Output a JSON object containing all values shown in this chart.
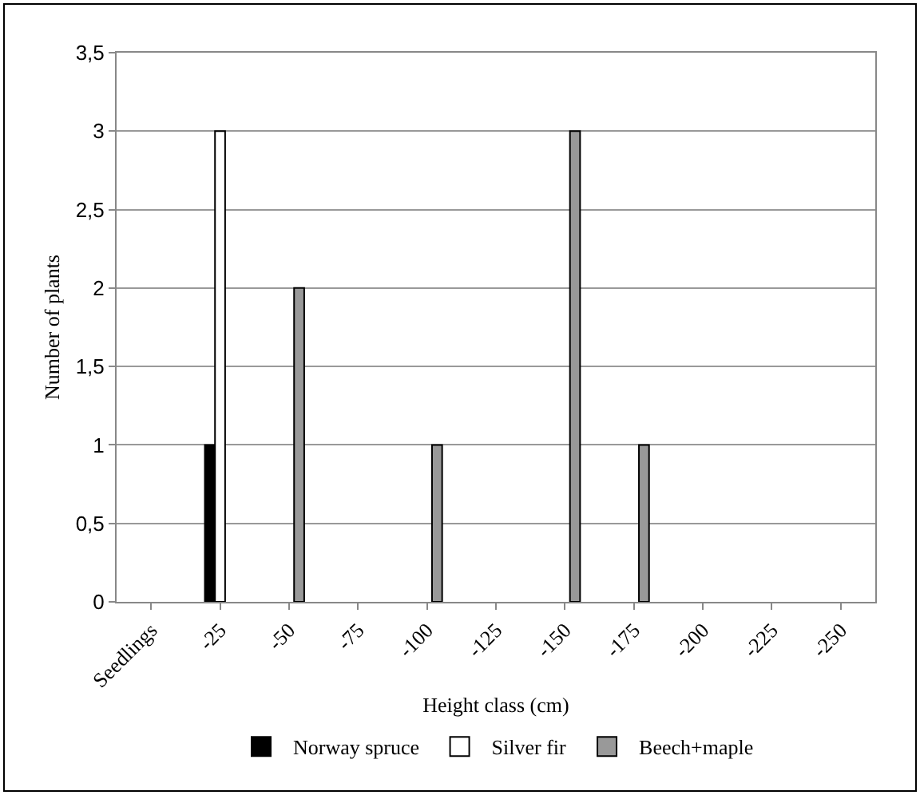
{
  "chart_data": {
    "type": "bar",
    "xlabel": "Height class (cm)",
    "ylabel": "Number of plants",
    "categories": [
      "Seedlings",
      "-25",
      "-50",
      "-75",
      "-100",
      "-125",
      "-150",
      "-175",
      "-200",
      "-225",
      "-250"
    ],
    "series": [
      {
        "name": "Norway spruce",
        "color": "#000000",
        "values": [
          null,
          1,
          null,
          null,
          null,
          null,
          null,
          null,
          null,
          null,
          null
        ]
      },
      {
        "name": "Silver fir",
        "color": "#ffffff",
        "values": [
          null,
          3,
          null,
          null,
          null,
          null,
          null,
          null,
          null,
          null,
          null
        ]
      },
      {
        "name": "Beech+maple",
        "color": "#999999",
        "values": [
          null,
          null,
          2,
          null,
          1,
          null,
          3,
          1,
          null,
          null,
          null
        ]
      }
    ],
    "ylim": [
      0,
      3.5
    ],
    "yticks": [
      0,
      {
        "value": 0.5,
        "label": "0,5"
      },
      1,
      {
        "value": 1.5,
        "label": "1,5"
      },
      2,
      {
        "value": 2.5,
        "label": "2,5"
      },
      3,
      {
        "value": 3.5,
        "label": "3,5"
      }
    ],
    "grid": "y",
    "legend": "bottom"
  }
}
